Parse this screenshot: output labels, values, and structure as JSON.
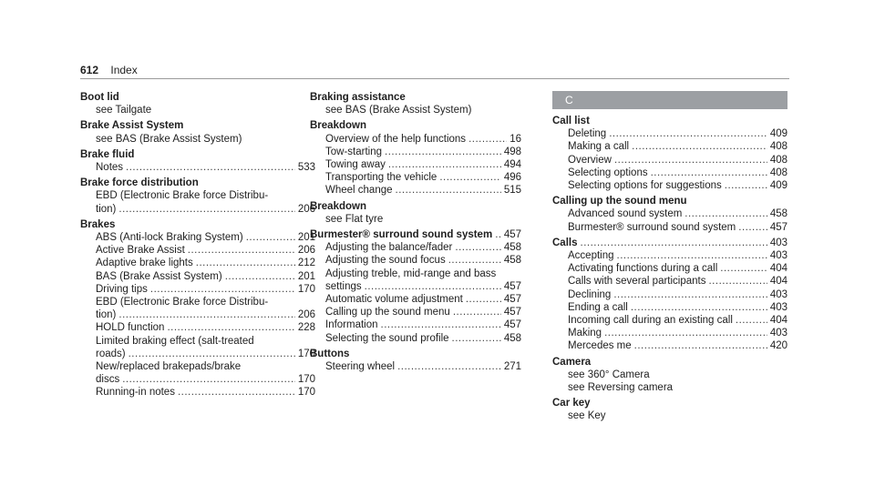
{
  "header": {
    "page_number": "612",
    "section": "Index"
  },
  "section_letter": "C",
  "columns": [
    [
      {
        "term": "Boot lid",
        "lines": [
          {
            "text": "see Tailgate"
          }
        ]
      },
      {
        "term": "Brake Assist System",
        "lines": [
          {
            "text": "see BAS (Brake Assist System)"
          }
        ]
      },
      {
        "term": "Brake fluid",
        "lines": [
          {
            "text": "Notes",
            "page": "533"
          }
        ]
      },
      {
        "term": "Brake force distribution",
        "lines": [
          {
            "text": "EBD (Electronic Brake force Distribu-"
          },
          {
            "text": "tion)",
            "page": "206"
          }
        ]
      },
      {
        "term": "Brakes",
        "lines": [
          {
            "text": "ABS (Anti-lock Braking System)",
            "page": "201"
          },
          {
            "text": "Active Brake Assist",
            "page": "206"
          },
          {
            "text": "Adaptive brake lights",
            "page": "212"
          },
          {
            "text": "BAS (Brake Assist System)",
            "page": "201"
          },
          {
            "text": "Driving tips",
            "page": "170"
          },
          {
            "text": "EBD (Electronic Brake force Distribu-"
          },
          {
            "text": "tion)",
            "page": "206"
          },
          {
            "text": "HOLD function",
            "page": "228"
          },
          {
            "text": "Limited braking effect (salt-treated"
          },
          {
            "text": "roads)",
            "page": "170"
          },
          {
            "text": "New/replaced brakepads/brake"
          },
          {
            "text": "discs",
            "page": "170"
          },
          {
            "text": "Running-in notes",
            "page": "170"
          }
        ]
      }
    ],
    [
      {
        "term": "Braking assistance",
        "lines": [
          {
            "text": "see BAS (Brake Assist System)"
          }
        ]
      },
      {
        "term": "Breakdown",
        "lines": [
          {
            "text": "Overview of the help functions",
            "page": "16"
          },
          {
            "text": "Tow-starting",
            "page": "498"
          },
          {
            "text": "Towing away",
            "page": "494"
          },
          {
            "text": "Transporting the vehicle",
            "page": "496"
          },
          {
            "text": "Wheel change",
            "page": "515"
          }
        ]
      },
      {
        "term": "Breakdown",
        "lines": [
          {
            "text": "see Flat tyre"
          }
        ]
      },
      {
        "term": "Burmester® surround sound system",
        "page": "457",
        "lines": [
          {
            "text": "Adjusting the balance/fader",
            "page": "458"
          },
          {
            "text": "Adjusting the sound focus",
            "page": "458"
          },
          {
            "text": "Adjusting treble, mid-range and bass"
          },
          {
            "text": "settings",
            "page": "457"
          },
          {
            "text": "Automatic volume adjustment",
            "page": "457"
          },
          {
            "text": "Calling up the sound menu",
            "page": "457"
          },
          {
            "text": "Information",
            "page": "457"
          },
          {
            "text": "Selecting the sound profile",
            "page": "458"
          }
        ]
      },
      {
        "term": "Buttons",
        "lines": [
          {
            "text": "Steering wheel",
            "page": "271"
          }
        ]
      }
    ],
    [
      {
        "term": "Call list",
        "lines": [
          {
            "text": "Deleting",
            "page": "409"
          },
          {
            "text": "Making a call",
            "page": "408"
          },
          {
            "text": "Overview",
            "page": "408"
          },
          {
            "text": "Selecting options",
            "page": "408"
          },
          {
            "text": "Selecting options for suggestions",
            "page": "409"
          }
        ]
      },
      {
        "term": "Calling up the sound menu",
        "lines": [
          {
            "text": "Advanced sound system",
            "page": "458"
          },
          {
            "text": "Burmester® surround sound system",
            "page": "457"
          }
        ]
      },
      {
        "term": "Calls",
        "page": "403",
        "lines": [
          {
            "text": "Accepting",
            "page": "403"
          },
          {
            "text": "Activating functions during a call",
            "page": "404"
          },
          {
            "text": "Calls with several participants",
            "page": "404"
          },
          {
            "text": "Declining",
            "page": "403"
          },
          {
            "text": "Ending a call",
            "page": "403"
          },
          {
            "text": "Incoming call during an existing call",
            "page": "404"
          },
          {
            "text": "Making",
            "page": "403"
          },
          {
            "text": "Mercedes me",
            "page": "420"
          }
        ]
      },
      {
        "term": "Camera",
        "lines": [
          {
            "text": "see 360° Camera"
          },
          {
            "text": "see Reversing camera"
          }
        ]
      },
      {
        "term": "Car key",
        "lines": [
          {
            "text": "see Key"
          }
        ]
      }
    ]
  ]
}
